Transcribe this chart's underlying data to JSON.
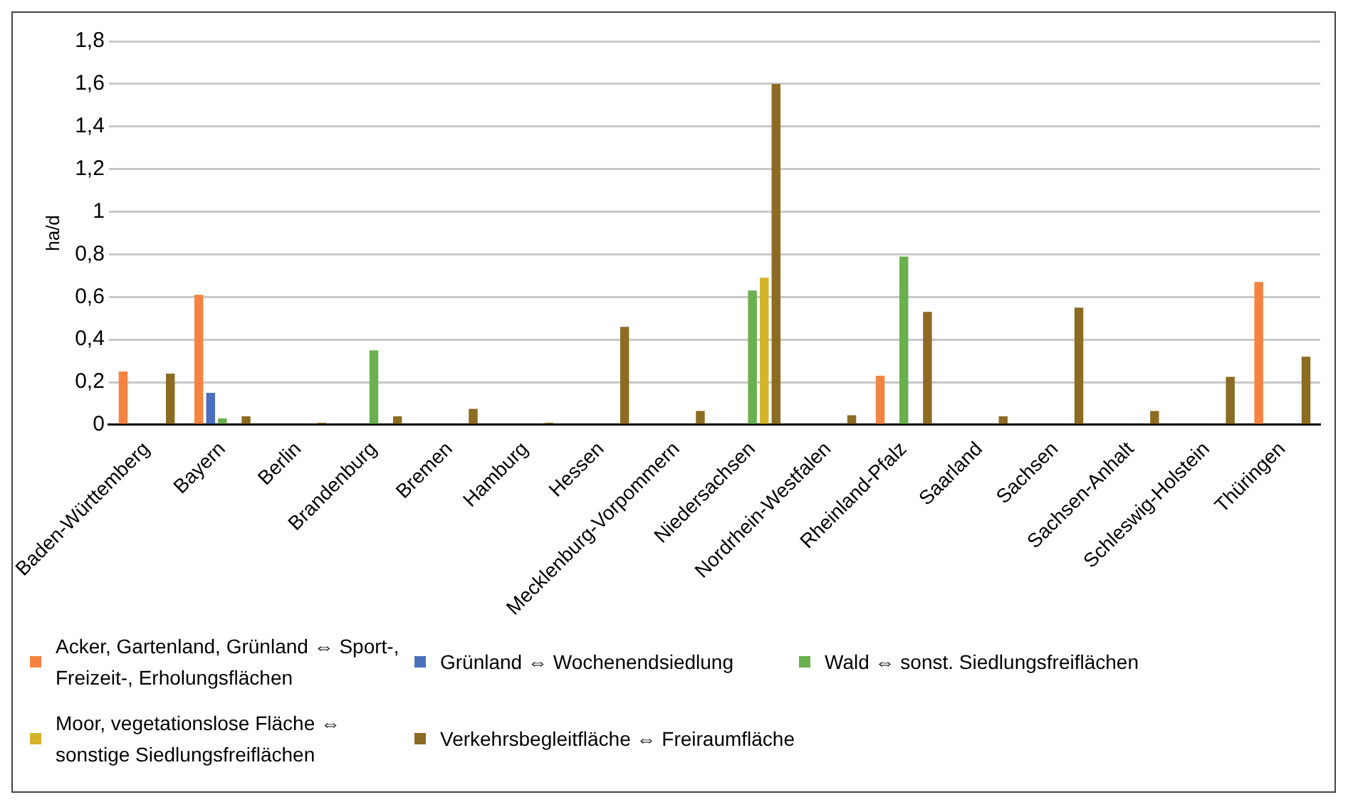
{
  "chart_data": {
    "type": "bar",
    "ylabel": "ha/d",
    "categories": [
      "Baden-Württemberg",
      "Bayern",
      "Berlin",
      "Brandenburg",
      "Bremen",
      "Hamburg",
      "Hessen",
      "Mecklenburg-Vorpommern",
      "Niedersachsen",
      "Nordrhein-Westfalen",
      "Rheinland-Pfalz",
      "Saarland",
      "Sachsen",
      "Sachsen-Anhalt",
      "Schleswig-Holstein",
      "Thüringen"
    ],
    "series": [
      {
        "name": "Acker, Gartenland, Grünland ⇔ Sport-, Freizeit-, Erholungsflächen",
        "color": "#f58340",
        "values": [
          0.25,
          0.61,
          null,
          null,
          null,
          null,
          null,
          null,
          null,
          null,
          0.23,
          null,
          null,
          null,
          null,
          0.67
        ]
      },
      {
        "name": "Grünland ⇔ Wochenendsiedlung",
        "color": "#4a6fbd",
        "values": [
          null,
          0.15,
          null,
          null,
          null,
          null,
          null,
          null,
          null,
          null,
          null,
          null,
          null,
          null,
          null,
          null
        ]
      },
      {
        "name": "Wald ⇔ sonst. Siedlungsfreiflächen",
        "color": "#6ab04f",
        "values": [
          null,
          0.03,
          null,
          0.35,
          null,
          null,
          null,
          null,
          0.63,
          null,
          0.79,
          null,
          null,
          null,
          null,
          null
        ]
      },
      {
        "name": "Moor, vegetationslose Fläche ⇔ sonstige Siedlungsfreiflächen",
        "color": "#d4b42c",
        "values": [
          null,
          null,
          null,
          null,
          null,
          null,
          null,
          null,
          0.69,
          null,
          null,
          null,
          null,
          null,
          null,
          null
        ]
      },
      {
        "name": "Verkehrsbegleitfläche ⇔ Freiraumfläche",
        "color": "#8c6b22",
        "values": [
          0.24,
          0.04,
          0.01,
          0.04,
          0.075,
          0.01,
          0.46,
          0.065,
          1.6,
          0.045,
          0.53,
          0.04,
          0.55,
          0.065,
          0.225,
          0.32
        ]
      }
    ],
    "ylim": [
      0,
      1.8
    ],
    "yticks": [
      0,
      {
        "value": 0.2,
        "label": "0,2"
      },
      {
        "value": 0.4,
        "label": "0,4"
      },
      {
        "value": 0.6,
        "label": "0,6"
      },
      {
        "value": 0.8,
        "label": "0,8"
      },
      1,
      {
        "value": 1.2,
        "label": "1,2"
      },
      {
        "value": 1.4,
        "label": "1,4"
      },
      {
        "value": 1.6,
        "label": "1,6"
      },
      {
        "value": 1.8,
        "label": "1,8"
      }
    ],
    "grid": "y",
    "legend": "bottom"
  }
}
